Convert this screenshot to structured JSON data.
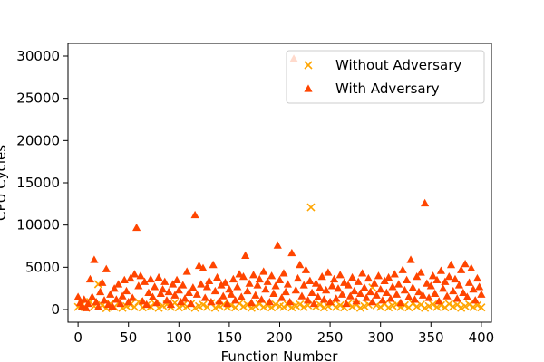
{
  "chart_data": {
    "type": "scatter",
    "xlabel": "Function Number",
    "ylabel": "CPU Cycles",
    "xlim": [
      -10,
      410
    ],
    "ylim": [
      -1500,
      31500
    ],
    "xticks": [
      0,
      50,
      100,
      150,
      200,
      250,
      300,
      350,
      400
    ],
    "yticks": [
      0,
      5000,
      10000,
      15000,
      20000,
      25000,
      30000
    ],
    "grid": false,
    "legend_position": "top-right",
    "series": [
      {
        "name": "Without Adversary",
        "marker": "x",
        "color": "#ffa500",
        "points": [
          [
            0,
            300
          ],
          [
            4,
            600
          ],
          [
            8,
            200
          ],
          [
            12,
            900
          ],
          [
            16,
            400
          ],
          [
            20,
            3000
          ],
          [
            24,
            500
          ],
          [
            28,
            150
          ],
          [
            32,
            700
          ],
          [
            36,
            300
          ],
          [
            40,
            800
          ],
          [
            44,
            200
          ],
          [
            48,
            400
          ],
          [
            52,
            600
          ],
          [
            56,
            300
          ],
          [
            60,
            900
          ],
          [
            64,
            250
          ],
          [
            68,
            500
          ],
          [
            72,
            350
          ],
          [
            76,
            700
          ],
          [
            80,
            200
          ],
          [
            84,
            450
          ],
          [
            88,
            600
          ],
          [
            92,
            300
          ],
          [
            96,
            800
          ],
          [
            100,
            250
          ],
          [
            104,
            500
          ],
          [
            108,
            350
          ],
          [
            112,
            650
          ],
          [
            116,
            200
          ],
          [
            120,
            400
          ],
          [
            124,
            550
          ],
          [
            128,
            300
          ],
          [
            132,
            750
          ],
          [
            136,
            200
          ],
          [
            140,
            450
          ],
          [
            144,
            600
          ],
          [
            148,
            300
          ],
          [
            152,
            500
          ],
          [
            156,
            250
          ],
          [
            160,
            700
          ],
          [
            164,
            350
          ],
          [
            168,
            550
          ],
          [
            172,
            200
          ],
          [
            176,
            400
          ],
          [
            180,
            650
          ],
          [
            184,
            300
          ],
          [
            188,
            500
          ],
          [
            192,
            250
          ],
          [
            196,
            600
          ],
          [
            200,
            400
          ],
          [
            204,
            300
          ],
          [
            208,
            550
          ],
          [
            212,
            250
          ],
          [
            216,
            450
          ],
          [
            220,
            600
          ],
          [
            224,
            300
          ],
          [
            228,
            500
          ],
          [
            231,
            12100
          ],
          [
            236,
            350
          ],
          [
            240,
            550
          ],
          [
            244,
            250
          ],
          [
            248,
            400
          ],
          [
            252,
            650
          ],
          [
            256,
            300
          ],
          [
            260,
            500
          ],
          [
            264,
            250
          ],
          [
            268,
            700
          ],
          [
            272,
            350
          ],
          [
            276,
            550
          ],
          [
            280,
            200
          ],
          [
            284,
            400
          ],
          [
            288,
            600
          ],
          [
            292,
            2600
          ],
          [
            296,
            500
          ],
          [
            300,
            300
          ],
          [
            304,
            650
          ],
          [
            308,
            250
          ],
          [
            312,
            450
          ],
          [
            316,
            600
          ],
          [
            320,
            300
          ],
          [
            324,
            500
          ],
          [
            328,
            250
          ],
          [
            332,
            700
          ],
          [
            336,
            350
          ],
          [
            340,
            550
          ],
          [
            344,
            200
          ],
          [
            348,
            400
          ],
          [
            352,
            600
          ],
          [
            356,
            300
          ],
          [
            360,
            500
          ],
          [
            364,
            250
          ],
          [
            368,
            650
          ],
          [
            372,
            350
          ],
          [
            376,
            550
          ],
          [
            380,
            200
          ],
          [
            384,
            400
          ],
          [
            388,
            600
          ],
          [
            392,
            300
          ],
          [
            396,
            500
          ],
          [
            400,
            250
          ]
        ]
      },
      {
        "name": "With Adversary",
        "marker": "triangle",
        "color": "#ff4500",
        "points": [
          [
            0,
            1500
          ],
          [
            2,
            800
          ],
          [
            4,
            400
          ],
          [
            6,
            1200
          ],
          [
            8,
            200
          ],
          [
            10,
            700
          ],
          [
            12,
            3600
          ],
          [
            14,
            1500
          ],
          [
            16,
            5900
          ],
          [
            18,
            900
          ],
          [
            20,
            300
          ],
          [
            22,
            2100
          ],
          [
            24,
            3200
          ],
          [
            26,
            1100
          ],
          [
            28,
            4800
          ],
          [
            30,
            600
          ],
          [
            32,
            1800
          ],
          [
            34,
            400
          ],
          [
            36,
            2500
          ],
          [
            38,
            1200
          ],
          [
            40,
            3000
          ],
          [
            42,
            700
          ],
          [
            44,
            1600
          ],
          [
            46,
            3500
          ],
          [
            48,
            2200
          ],
          [
            50,
            900
          ],
          [
            52,
            3700
          ],
          [
            54,
            1400
          ],
          [
            56,
            4200
          ],
          [
            58,
            9700
          ],
          [
            60,
            2800
          ],
          [
            62,
            4000
          ],
          [
            64,
            1000
          ],
          [
            66,
            3300
          ],
          [
            68,
            600
          ],
          [
            70,
            2000
          ],
          [
            72,
            3600
          ],
          [
            74,
            1500
          ],
          [
            76,
            2700
          ],
          [
            78,
            800
          ],
          [
            80,
            3800
          ],
          [
            82,
            1900
          ],
          [
            84,
            2400
          ],
          [
            86,
            3300
          ],
          [
            88,
            1100
          ],
          [
            90,
            2100
          ],
          [
            92,
            600
          ],
          [
            94,
            3000
          ],
          [
            96,
            1700
          ],
          [
            98,
            3500
          ],
          [
            100,
            2300
          ],
          [
            102,
            900
          ],
          [
            104,
            2900
          ],
          [
            106,
            1300
          ],
          [
            108,
            4500
          ],
          [
            110,
            2000
          ],
          [
            112,
            700
          ],
          [
            114,
            2600
          ],
          [
            116,
            11200
          ],
          [
            118,
            1800
          ],
          [
            120,
            5200
          ],
          [
            122,
            3000
          ],
          [
            124,
            4900
          ],
          [
            126,
            1400
          ],
          [
            128,
            2700
          ],
          [
            130,
            3400
          ],
          [
            132,
            900
          ],
          [
            134,
            5300
          ],
          [
            136,
            2200
          ],
          [
            138,
            3800
          ],
          [
            140,
            1000
          ],
          [
            142,
            2900
          ],
          [
            144,
            1600
          ],
          [
            146,
            3200
          ],
          [
            148,
            700
          ],
          [
            150,
            2400
          ],
          [
            152,
            1800
          ],
          [
            154,
            3600
          ],
          [
            156,
            1100
          ],
          [
            158,
            2700
          ],
          [
            160,
            4200
          ],
          [
            162,
            1500
          ],
          [
            164,
            3900
          ],
          [
            166,
            6400
          ],
          [
            168,
            2200
          ],
          [
            170,
            3100
          ],
          [
            172,
            800
          ],
          [
            174,
            4100
          ],
          [
            176,
            1700
          ],
          [
            178,
            2900
          ],
          [
            180,
            3600
          ],
          [
            182,
            1200
          ],
          [
            184,
            4500
          ],
          [
            186,
            2400
          ],
          [
            188,
            3300
          ],
          [
            190,
            900
          ],
          [
            192,
            4000
          ],
          [
            194,
            1900
          ],
          [
            196,
            2800
          ],
          [
            198,
            7600
          ],
          [
            200,
            3500
          ],
          [
            202,
            1400
          ],
          [
            204,
            4300
          ],
          [
            206,
            2100
          ],
          [
            208,
            3000
          ],
          [
            210,
            900
          ],
          [
            212,
            6700
          ],
          [
            214,
            29700
          ],
          [
            216,
            2300
          ],
          [
            218,
            3700
          ],
          [
            220,
            5300
          ],
          [
            222,
            1600
          ],
          [
            224,
            2900
          ],
          [
            226,
            4700
          ],
          [
            228,
            1100
          ],
          [
            230,
            3400
          ],
          [
            232,
            2000
          ],
          [
            234,
            700
          ],
          [
            236,
            3100
          ],
          [
            238,
            1500
          ],
          [
            240,
            2600
          ],
          [
            242,
            3900
          ],
          [
            244,
            1200
          ],
          [
            246,
            2300
          ],
          [
            248,
            4400
          ],
          [
            250,
            900
          ],
          [
            252,
            2800
          ],
          [
            254,
            3600
          ],
          [
            256,
            1300
          ],
          [
            258,
            2500
          ],
          [
            260,
            4100
          ],
          [
            262,
            1800
          ],
          [
            264,
            3200
          ],
          [
            266,
            700
          ],
          [
            268,
            2900
          ],
          [
            270,
            1600
          ],
          [
            272,
            3800
          ],
          [
            274,
            2200
          ],
          [
            276,
            1000
          ],
          [
            278,
            3300
          ],
          [
            280,
            1900
          ],
          [
            282,
            4300
          ],
          [
            284,
            2600
          ],
          [
            286,
            1400
          ],
          [
            288,
            3700
          ],
          [
            290,
            2100
          ],
          [
            292,
            900
          ],
          [
            294,
            3100
          ],
          [
            296,
            1700
          ],
          [
            298,
            4000
          ],
          [
            300,
            2400
          ],
          [
            302,
            1100
          ],
          [
            304,
            3400
          ],
          [
            306,
            2000
          ],
          [
            308,
            3800
          ],
          [
            310,
            1300
          ],
          [
            312,
            2700
          ],
          [
            314,
            4200
          ],
          [
            316,
            1800
          ],
          [
            318,
            3000
          ],
          [
            320,
            800
          ],
          [
            322,
            4700
          ],
          [
            324,
            2300
          ],
          [
            326,
            3500
          ],
          [
            328,
            1500
          ],
          [
            330,
            5900
          ],
          [
            332,
            2600
          ],
          [
            334,
            1200
          ],
          [
            336,
            3900
          ],
          [
            338,
            2100
          ],
          [
            340,
            4400
          ],
          [
            342,
            1700
          ],
          [
            344,
            12600
          ],
          [
            346,
            3100
          ],
          [
            348,
            1400
          ],
          [
            350,
            2800
          ],
          [
            352,
            4000
          ],
          [
            354,
            1900
          ],
          [
            356,
            3500
          ],
          [
            358,
            1000
          ],
          [
            360,
            4600
          ],
          [
            362,
            2500
          ],
          [
            364,
            3300
          ],
          [
            366,
            1600
          ],
          [
            368,
            3900
          ],
          [
            370,
            5300
          ],
          [
            372,
            2200
          ],
          [
            374,
            3600
          ],
          [
            376,
            1300
          ],
          [
            378,
            2900
          ],
          [
            380,
            4700
          ],
          [
            382,
            2000
          ],
          [
            384,
            5400
          ],
          [
            386,
            1500
          ],
          [
            388,
            3200
          ],
          [
            390,
            4900
          ],
          [
            392,
            2400
          ],
          [
            394,
            1100
          ],
          [
            396,
            3700
          ],
          [
            398,
            2700
          ],
          [
            400,
            1800
          ]
        ]
      }
    ]
  }
}
